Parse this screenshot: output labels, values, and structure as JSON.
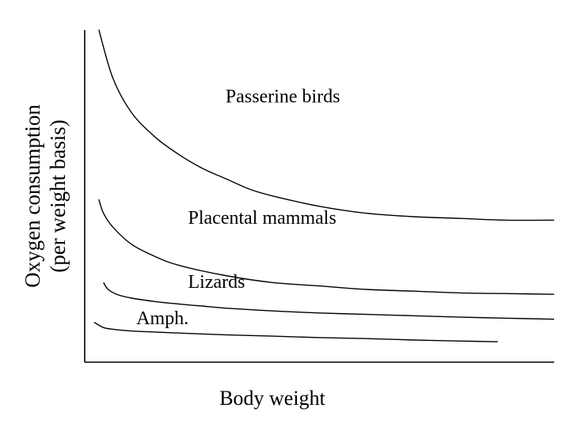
{
  "chart_data": {
    "type": "line",
    "title": "",
    "xlabel": "Body weight",
    "ylabel": [
      "Oxygen consumption",
      "(per weight basis)"
    ],
    "xlim": [
      0,
      100
    ],
    "ylim": [
      0,
      100
    ],
    "grid": false,
    "legend": "none",
    "series": [
      {
        "name": "Passerine birds",
        "x": [
          3,
          6,
          10,
          15,
          20,
          25,
          30,
          35,
          40,
          50,
          60,
          70,
          80,
          90,
          100
        ],
        "y": [
          96,
          82,
          72,
          65,
          60,
          56,
          53,
          50,
          48,
          45,
          43,
          42,
          41.5,
          41,
          41
        ]
      },
      {
        "name": "Placental mammals",
        "x": [
          3,
          4,
          6,
          10,
          15,
          20,
          30,
          40,
          50,
          60,
          70,
          80,
          90,
          100
        ],
        "y": [
          47,
          43,
          39,
          34,
          30.5,
          28,
          25,
          23,
          22,
          21,
          20.5,
          20,
          19.8,
          19.6
        ]
      },
      {
        "name": "Lizards",
        "x": [
          4,
          5,
          7,
          10,
          15,
          20,
          25,
          30,
          40,
          50,
          60,
          70,
          80,
          90,
          100
        ],
        "y": [
          23,
          21,
          19.5,
          18.5,
          17.5,
          16.8,
          16.2,
          15.6,
          14.8,
          14.2,
          13.8,
          13.4,
          13,
          12.7,
          12.4
        ]
      },
      {
        "name": "Amph.",
        "x": [
          2,
          4,
          6,
          10,
          15,
          20,
          30,
          40,
          50,
          60,
          70,
          80,
          88
        ],
        "y": [
          11.5,
          10,
          9.5,
          9,
          8.7,
          8.4,
          7.9,
          7.5,
          7.1,
          6.8,
          6.4,
          6.1,
          5.9
        ]
      }
    ]
  }
}
